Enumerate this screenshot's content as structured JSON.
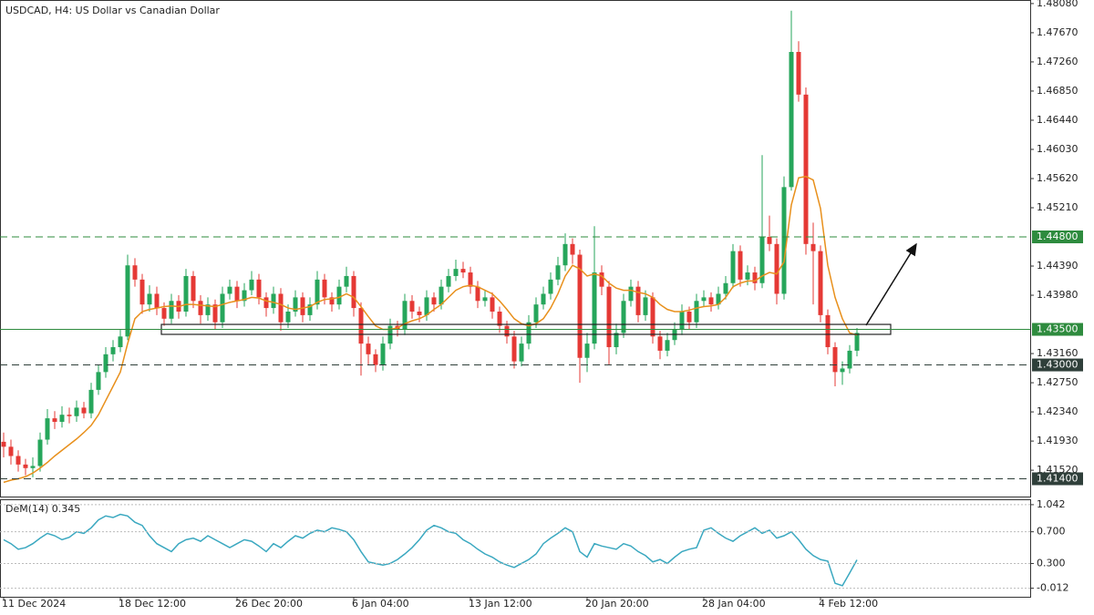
{
  "chart_data": {
    "type": "candlestick",
    "title": "USDCAD, H4:  US Dollar vs Canadian Dollar",
    "up_color": "#26a65b",
    "down_color": "#e53935",
    "ylim": [
      1.4115,
      1.4813
    ],
    "yticks": [
      {
        "value": 1.4808,
        "label": "1.48080"
      },
      {
        "value": 1.4767,
        "label": "1.47670"
      },
      {
        "value": 1.4726,
        "label": "1.47260"
      },
      {
        "value": 1.4685,
        "label": "1.46850"
      },
      {
        "value": 1.4644,
        "label": "1.46440"
      },
      {
        "value": 1.4603,
        "label": "1.46030"
      },
      {
        "value": 1.4562,
        "label": "1.45620"
      },
      {
        "value": 1.4521,
        "label": "1.45210"
      },
      {
        "value": 1.4439,
        "label": "1.44390"
      },
      {
        "value": 1.4398,
        "label": "1.43980"
      },
      {
        "value": 1.4316,
        "label": "1.43160"
      },
      {
        "value": 1.4275,
        "label": "1.42750"
      },
      {
        "value": 1.4234,
        "label": "1.42340"
      },
      {
        "value": 1.4193,
        "label": "1.41930"
      },
      {
        "value": 1.4152,
        "label": "1.41520"
      }
    ],
    "levels": [
      {
        "value": 1.448,
        "label": "1.44800",
        "color": "#2e8b3e",
        "style": "dashed"
      },
      {
        "value": 1.435,
        "label": "1.43500",
        "color": "#2e8b3e",
        "style": "solid"
      },
      {
        "value": 1.43,
        "label": "1.43000",
        "color": "#2f3f3a",
        "style": "dashed"
      },
      {
        "value": 1.414,
        "label": "1.41400",
        "color": "#2f3f3a",
        "style": "dashed"
      }
    ],
    "zone": [
      1.4343,
      1.4357
    ],
    "categories": [
      "11 Dec 2024",
      null,
      null,
      null,
      null,
      null,
      null,
      null,
      null,
      null,
      null,
      null,
      null,
      null,
      null,
      null,
      "18 Dec 12:00",
      null,
      null,
      null,
      null,
      null,
      null,
      null,
      null,
      null,
      null,
      null,
      null,
      null,
      null,
      null,
      "26 Dec 20:00",
      null,
      null,
      null,
      null,
      null,
      null,
      null,
      null,
      null,
      null,
      null,
      null,
      null,
      null,
      null,
      "6 Jan 04:00",
      null,
      null,
      null,
      null,
      null,
      null,
      null,
      null,
      null,
      null,
      null,
      null,
      null,
      null,
      null,
      "13 Jan 12:00",
      null,
      null,
      null,
      null,
      null,
      null,
      null,
      null,
      null,
      null,
      null,
      null,
      null,
      null,
      null,
      "20 Jan 20:00",
      null,
      null,
      null,
      null,
      null,
      null,
      null,
      null,
      null,
      null,
      null,
      null,
      null,
      null,
      null,
      "28 Jan 04:00",
      null,
      null,
      null,
      null,
      null,
      null,
      null,
      null,
      null,
      null,
      null,
      null,
      null,
      null,
      null,
      "4 Feb 12:00",
      null,
      null,
      null,
      null,
      null
    ],
    "ohlc": [
      [
        1.4192,
        1.4205,
        1.417,
        1.4185
      ],
      [
        1.4185,
        1.4195,
        1.416,
        1.4172
      ],
      [
        1.4172,
        1.418,
        1.415,
        1.416
      ],
      [
        1.416,
        1.4168,
        1.4145,
        1.4155
      ],
      [
        1.4155,
        1.417,
        1.4142,
        1.4158
      ],
      [
        1.4158,
        1.4205,
        1.415,
        1.4195
      ],
      [
        1.4195,
        1.4238,
        1.4188,
        1.4225
      ],
      [
        1.4225,
        1.4235,
        1.421,
        1.422
      ],
      [
        1.422,
        1.4242,
        1.4212,
        1.423
      ],
      [
        1.423,
        1.424,
        1.4218,
        1.4228
      ],
      [
        1.4228,
        1.425,
        1.422,
        1.424
      ],
      [
        1.424,
        1.4248,
        1.4225,
        1.4232
      ],
      [
        1.4232,
        1.4275,
        1.4225,
        1.4265
      ],
      [
        1.4265,
        1.43,
        1.4258,
        1.429
      ],
      [
        1.429,
        1.4325,
        1.4282,
        1.4315
      ],
      [
        1.4315,
        1.4335,
        1.4305,
        1.4325
      ],
      [
        1.4325,
        1.435,
        1.4318,
        1.434
      ],
      [
        1.434,
        1.4455,
        1.4335,
        1.444
      ],
      [
        1.444,
        1.445,
        1.441,
        1.442
      ],
      [
        1.442,
        1.4428,
        1.4372,
        1.4385
      ],
      [
        1.4385,
        1.4412,
        1.4375,
        1.44
      ],
      [
        1.44,
        1.441,
        1.437,
        1.438
      ],
      [
        1.438,
        1.4388,
        1.4355,
        1.4365
      ],
      [
        1.4365,
        1.44,
        1.4358,
        1.439
      ],
      [
        1.439,
        1.4398,
        1.4365,
        1.4375
      ],
      [
        1.4375,
        1.4435,
        1.4368,
        1.4425
      ],
      [
        1.4425,
        1.4432,
        1.438,
        1.439
      ],
      [
        1.439,
        1.4398,
        1.4358,
        1.437
      ],
      [
        1.437,
        1.4395,
        1.4362,
        1.4385
      ],
      [
        1.4385,
        1.4392,
        1.435,
        1.436
      ],
      [
        1.436,
        1.441,
        1.4352,
        1.44
      ],
      [
        1.44,
        1.442,
        1.4392,
        1.441
      ],
      [
        1.441,
        1.4418,
        1.438,
        1.439
      ],
      [
        1.439,
        1.4415,
        1.4382,
        1.4405
      ],
      [
        1.4405,
        1.4432,
        1.4398,
        1.442
      ],
      [
        1.442,
        1.4428,
        1.4385,
        1.4395
      ],
      [
        1.4395,
        1.4402,
        1.4368,
        1.438
      ],
      [
        1.438,
        1.441,
        1.4372,
        1.44
      ],
      [
        1.44,
        1.4408,
        1.4348,
        1.436
      ],
      [
        1.436,
        1.4385,
        1.4352,
        1.4375
      ],
      [
        1.4375,
        1.4405,
        1.4368,
        1.4395
      ],
      [
        1.4395,
        1.4402,
        1.436,
        1.437
      ],
      [
        1.437,
        1.4395,
        1.4362,
        1.4385
      ],
      [
        1.4385,
        1.4432,
        1.4378,
        1.442
      ],
      [
        1.442,
        1.4428,
        1.4385,
        1.4395
      ],
      [
        1.4395,
        1.4402,
        1.4375,
        1.4385
      ],
      [
        1.4385,
        1.442,
        1.4378,
        1.441
      ],
      [
        1.441,
        1.4438,
        1.4402,
        1.4425
      ],
      [
        1.4425,
        1.4432,
        1.4368,
        1.438
      ],
      [
        1.438,
        1.4388,
        1.4285,
        1.433
      ],
      [
        1.433,
        1.434,
        1.43,
        1.4315
      ],
      [
        1.4315,
        1.4322,
        1.429,
        1.43
      ],
      [
        1.43,
        1.434,
        1.4292,
        1.433
      ],
      [
        1.433,
        1.4365,
        1.4322,
        1.4355
      ],
      [
        1.4355,
        1.4362,
        1.434,
        1.435
      ],
      [
        1.435,
        1.44,
        1.4342,
        1.439
      ],
      [
        1.439,
        1.4398,
        1.4365,
        1.4375
      ],
      [
        1.4375,
        1.4382,
        1.436,
        1.437
      ],
      [
        1.437,
        1.4405,
        1.4362,
        1.4395
      ],
      [
        1.4395,
        1.4402,
        1.4375,
        1.4385
      ],
      [
        1.4385,
        1.442,
        1.4378,
        1.441
      ],
      [
        1.441,
        1.4435,
        1.4402,
        1.4425
      ],
      [
        1.4425,
        1.4448,
        1.4418,
        1.4435
      ],
      [
        1.4435,
        1.4445,
        1.4422,
        1.443
      ],
      [
        1.443,
        1.4438,
        1.44,
        1.441
      ],
      [
        1.441,
        1.4418,
        1.438,
        1.439
      ],
      [
        1.439,
        1.4405,
        1.4382,
        1.4395
      ],
      [
        1.4395,
        1.4402,
        1.4365,
        1.4375
      ],
      [
        1.4375,
        1.4382,
        1.4345,
        1.4355
      ],
      [
        1.4355,
        1.4362,
        1.433,
        1.434
      ],
      [
        1.434,
        1.4348,
        1.4295,
        1.4305
      ],
      [
        1.4305,
        1.434,
        1.4298,
        1.433
      ],
      [
        1.433,
        1.437,
        1.4322,
        1.436
      ],
      [
        1.436,
        1.4395,
        1.4352,
        1.4385
      ],
      [
        1.4385,
        1.441,
        1.4378,
        1.44
      ],
      [
        1.44,
        1.443,
        1.4392,
        1.442
      ],
      [
        1.442,
        1.4452,
        1.4412,
        1.444
      ],
      [
        1.444,
        1.4485,
        1.4432,
        1.447
      ],
      [
        1.447,
        1.4478,
        1.4442,
        1.4455
      ],
      [
        1.4455,
        1.4462,
        1.4275,
        1.431
      ],
      [
        1.431,
        1.4345,
        1.429,
        1.433
      ],
      [
        1.433,
        1.4495,
        1.4322,
        1.443
      ],
      [
        1.443,
        1.444,
        1.4398,
        1.441
      ],
      [
        1.441,
        1.4418,
        1.43,
        1.4325
      ],
      [
        1.4325,
        1.4358,
        1.4315,
        1.4345
      ],
      [
        1.4345,
        1.44,
        1.4338,
        1.439
      ],
      [
        1.439,
        1.442,
        1.4382,
        1.441
      ],
      [
        1.441,
        1.4418,
        1.436,
        1.437
      ],
      [
        1.437,
        1.4405,
        1.4362,
        1.4395
      ],
      [
        1.4395,
        1.4402,
        1.433,
        1.434
      ],
      [
        1.434,
        1.4348,
        1.4308,
        1.432
      ],
      [
        1.432,
        1.4345,
        1.4312,
        1.4335
      ],
      [
        1.4335,
        1.436,
        1.4328,
        1.435
      ],
      [
        1.435,
        1.4385,
        1.4342,
        1.4375
      ],
      [
        1.4375,
        1.4382,
        1.435,
        1.436
      ],
      [
        1.436,
        1.44,
        1.4352,
        1.439
      ],
      [
        1.439,
        1.4405,
        1.4382,
        1.4395
      ],
      [
        1.4395,
        1.4402,
        1.4375,
        1.4385
      ],
      [
        1.4385,
        1.441,
        1.4378,
        1.44
      ],
      [
        1.44,
        1.4425,
        1.4392,
        1.4415
      ],
      [
        1.4415,
        1.447,
        1.4408,
        1.446
      ],
      [
        1.446,
        1.4468,
        1.441,
        1.442
      ],
      [
        1.442,
        1.444,
        1.4412,
        1.443
      ],
      [
        1.443,
        1.4438,
        1.4405,
        1.4415
      ],
      [
        1.4415,
        1.4595,
        1.4408,
        1.448
      ],
      [
        1.448,
        1.451,
        1.446,
        1.447
      ],
      [
        1.447,
        1.4478,
        1.4385,
        1.44
      ],
      [
        1.44,
        1.4565,
        1.4392,
        1.455
      ],
      [
        1.455,
        1.4798,
        1.4545,
        1.474
      ],
      [
        1.474,
        1.4755,
        1.467,
        1.468
      ],
      [
        1.468,
        1.469,
        1.4455,
        1.447
      ],
      [
        1.447,
        1.45,
        1.4385,
        1.446
      ],
      [
        1.446,
        1.4468,
        1.436,
        1.437
      ],
      [
        1.437,
        1.4378,
        1.4315,
        1.4325
      ],
      [
        1.4325,
        1.4332,
        1.427,
        1.429
      ],
      [
        1.429,
        1.4305,
        1.4272,
        1.4295
      ],
      [
        1.4295,
        1.4328,
        1.4288,
        1.432
      ],
      [
        1.432,
        1.4352,
        1.4312,
        1.4345
      ]
    ],
    "ma": {
      "color": "#e8901c",
      "values": [
        1.4135,
        1.4138,
        1.414,
        1.4143,
        1.4148,
        1.4155,
        1.4163,
        1.4172,
        1.418,
        1.4188,
        1.4196,
        1.4205,
        1.4215,
        1.423,
        1.425,
        1.427,
        1.429,
        1.433,
        1.4365,
        1.4375,
        1.4378,
        1.438,
        1.4382,
        1.4383,
        1.4382,
        1.4385,
        1.4385,
        1.4384,
        1.4383,
        1.4382,
        1.4385,
        1.4388,
        1.439,
        1.4392,
        1.4395,
        1.4394,
        1.439,
        1.4388,
        1.4385,
        1.438,
        1.4378,
        1.438,
        1.4382,
        1.4388,
        1.4392,
        1.4393,
        1.4395,
        1.44,
        1.4395,
        1.4382,
        1.4368,
        1.4355,
        1.435,
        1.435,
        1.4352,
        1.4358,
        1.4362,
        1.4365,
        1.437,
        1.4378,
        1.4385,
        1.4395,
        1.4405,
        1.441,
        1.4412,
        1.441,
        1.4405,
        1.44,
        1.439,
        1.4378,
        1.4365,
        1.4358,
        1.4355,
        1.4358,
        1.4365,
        1.438,
        1.44,
        1.4425,
        1.444,
        1.4435,
        1.4425,
        1.4428,
        1.4425,
        1.4415,
        1.4408,
        1.4405,
        1.4405,
        1.4402,
        1.44,
        1.4395,
        1.4385,
        1.4378,
        1.4375,
        1.4375,
        1.4377,
        1.438,
        1.4382,
        1.4383,
        1.4385,
        1.4395,
        1.441,
        1.4415,
        1.4418,
        1.4418,
        1.4425,
        1.443,
        1.4428,
        1.4445,
        1.4525,
        1.4563,
        1.4565,
        1.456,
        1.452,
        1.444,
        1.4395,
        1.4365,
        1.4345,
        1.4342
      ]
    },
    "indicator": {
      "label": "DeM(14) 0.345",
      "color": "#3aa8c0",
      "ylim": [
        -0.12,
        1.11
      ],
      "yticks": [
        1.042,
        {
          "value": 0.7,
          "label": "0.700"
        },
        {
          "value": 0.3,
          "label": "0.300"
        },
        -0.012
      ],
      "values": [
        0.6,
        0.55,
        0.48,
        0.5,
        0.55,
        0.62,
        0.68,
        0.65,
        0.6,
        0.63,
        0.7,
        0.68,
        0.75,
        0.85,
        0.9,
        0.88,
        0.92,
        0.9,
        0.82,
        0.78,
        0.65,
        0.55,
        0.5,
        0.45,
        0.55,
        0.6,
        0.62,
        0.58,
        0.65,
        0.6,
        0.55,
        0.5,
        0.55,
        0.6,
        0.58,
        0.52,
        0.45,
        0.55,
        0.5,
        0.58,
        0.65,
        0.62,
        0.68,
        0.72,
        0.7,
        0.75,
        0.73,
        0.7,
        0.6,
        0.45,
        0.32,
        0.3,
        0.28,
        0.3,
        0.35,
        0.42,
        0.5,
        0.6,
        0.72,
        0.78,
        0.75,
        0.7,
        0.68,
        0.6,
        0.55,
        0.48,
        0.42,
        0.38,
        0.32,
        0.28,
        0.25,
        0.3,
        0.35,
        0.42,
        0.55,
        0.62,
        0.68,
        0.75,
        0.7,
        0.45,
        0.38,
        0.55,
        0.52,
        0.5,
        0.48,
        0.55,
        0.52,
        0.45,
        0.4,
        0.32,
        0.35,
        0.3,
        0.38,
        0.45,
        0.48,
        0.5,
        0.72,
        0.75,
        0.68,
        0.62,
        0.58,
        0.65,
        0.7,
        0.75,
        0.68,
        0.72,
        0.62,
        0.65,
        0.7,
        0.6,
        0.48,
        0.4,
        0.35,
        0.33,
        0.05,
        0.02,
        0.18,
        0.345
      ]
    }
  }
}
